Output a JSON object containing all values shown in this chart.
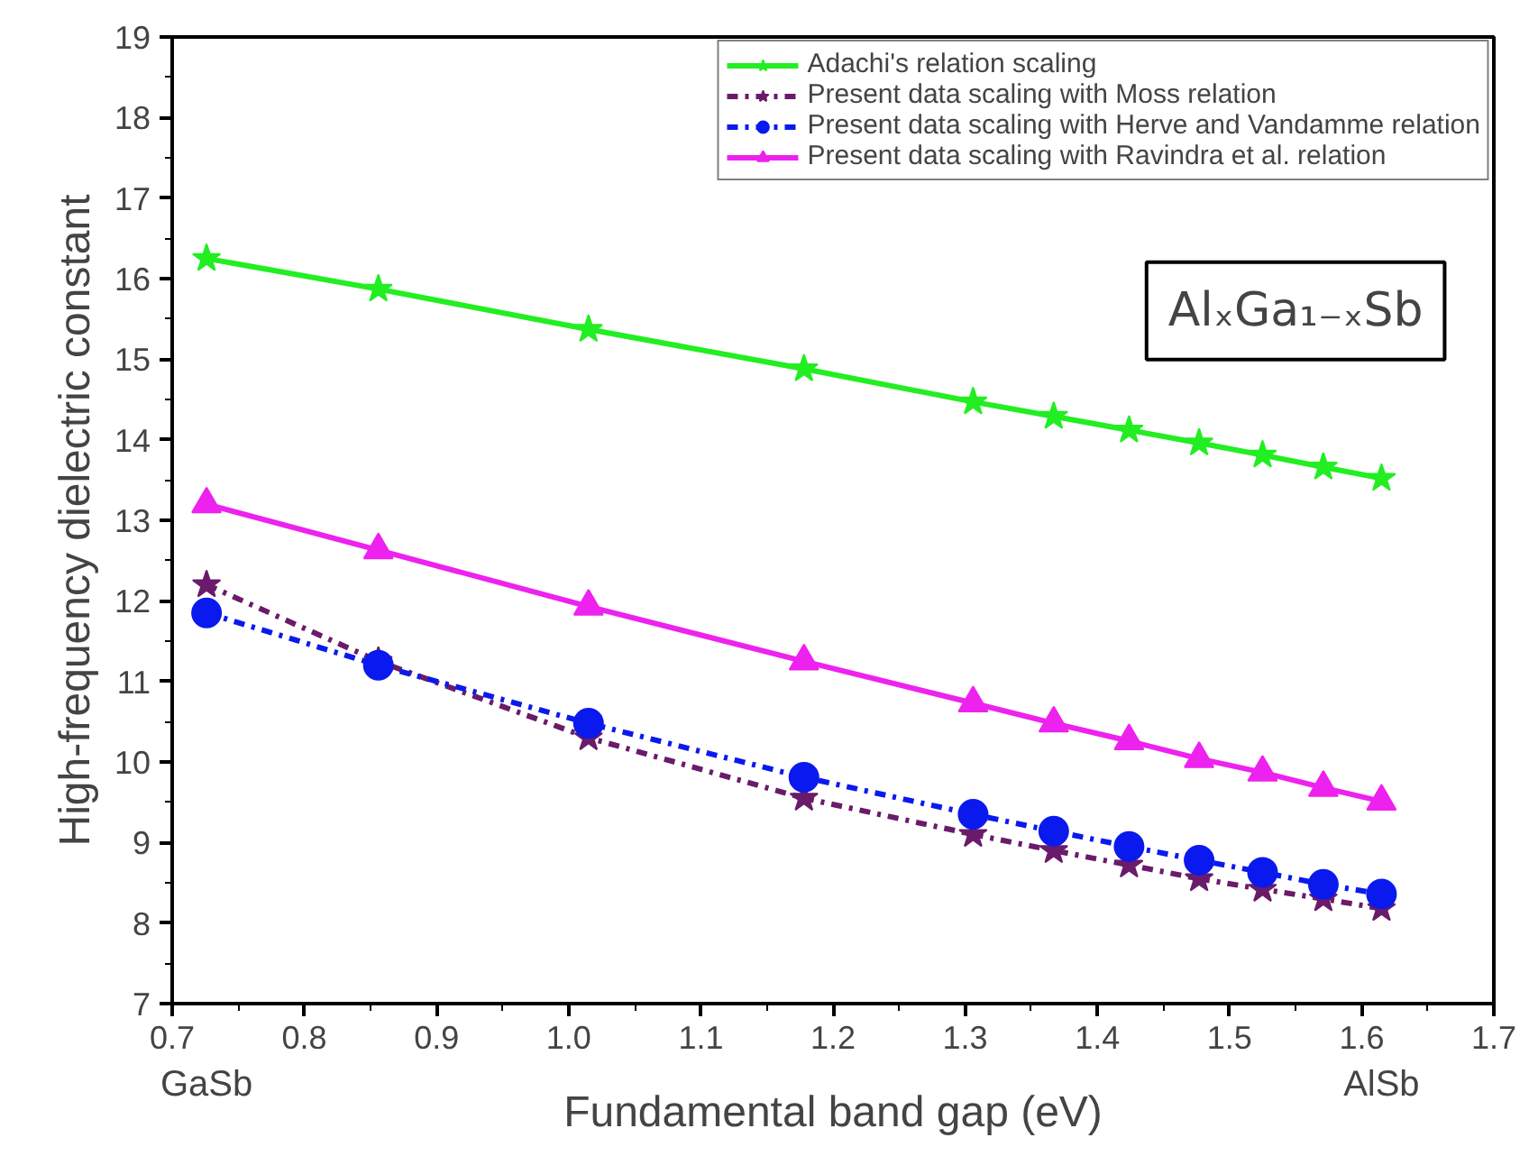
{
  "chart_data": {
    "type": "line",
    "xlabel": "Fundamental band gap (eV)",
    "ylabel": "High-frequency dielectric constant",
    "x": [
      0.726,
      0.856,
      1.015,
      1.178,
      1.306,
      1.367,
      1.424,
      1.477,
      1.525,
      1.571,
      1.615
    ],
    "series": [
      {
        "name": "Adachi's relation scaling",
        "color": "#22ee22",
        "marker": "star",
        "line_style": "solid",
        "values": [
          16.25,
          15.87,
          15.37,
          14.88,
          14.47,
          14.29,
          14.12,
          13.96,
          13.81,
          13.66,
          13.52
        ]
      },
      {
        "name": "Present data scaling with Moss relation",
        "color": "#6a1b6a",
        "marker": "star",
        "line_style": "dashdot",
        "values": [
          12.2,
          11.25,
          10.3,
          9.55,
          9.1,
          8.9,
          8.72,
          8.55,
          8.42,
          8.3,
          8.18
        ]
      },
      {
        "name": "Present data scaling with Herve and Vandamme relation",
        "color": "#0a1aee",
        "marker": "circle",
        "line_style": "dashdot",
        "values": [
          11.85,
          11.2,
          10.48,
          9.81,
          9.35,
          9.14,
          8.95,
          8.78,
          8.63,
          8.48,
          8.36
        ]
      },
      {
        "name": "Present data scaling with Ravindra et al. relation",
        "color": "#ee22ee",
        "marker": "triangle",
        "line_style": "solid",
        "values": [
          13.2,
          12.63,
          11.93,
          11.25,
          10.73,
          10.48,
          10.26,
          10.04,
          9.87,
          9.68,
          9.51
        ]
      }
    ],
    "xlim": [
      0.7,
      1.7
    ],
    "xticks": [
      0.7,
      0.8,
      0.9,
      {
        "value": 1.0,
        "label": "1.0"
      },
      1.1,
      1.2,
      1.3,
      1.4,
      1.5,
      1.6,
      1.7
    ],
    "ylim": [
      7,
      19
    ],
    "yticks": [
      7,
      8,
      9,
      10,
      11,
      12,
      13,
      14,
      15,
      16,
      17,
      18,
      19
    ],
    "grid": false,
    "legend": "top right",
    "annotations": [
      "GaSb",
      "AlSb",
      "AlₓGa₁₋ₓSb"
    ]
  }
}
